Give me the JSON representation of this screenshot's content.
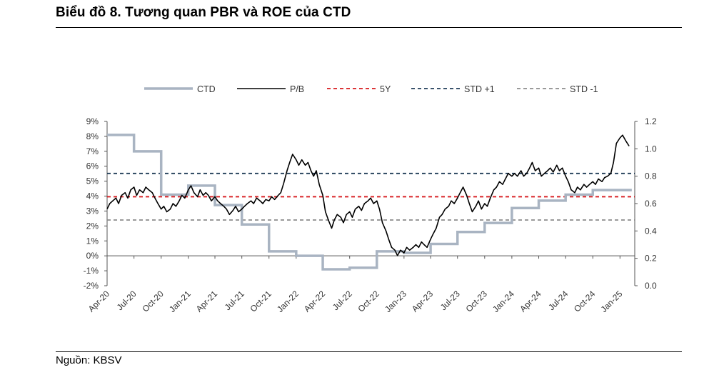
{
  "header": {
    "title": "Biểu đồ 8. Tương quan PBR và ROE của CTD"
  },
  "footer": {
    "source": "Nguồn: KBSV"
  },
  "chart_data": {
    "type": "line",
    "title": "Biểu đồ 8. Tương quan PBR và ROE của CTD",
    "xlabel": "",
    "ylabel_left": "",
    "ylabel_right": "",
    "x_ticks": [
      "Apr-20",
      "Jul-20",
      "Oct-20",
      "Jan-21",
      "Apr-21",
      "Jul-21",
      "Oct-21",
      "Jan-22",
      "Apr-22",
      "Jul-22",
      "Oct-22",
      "Jan-23",
      "Apr-23",
      "Jul-23",
      "Oct-23",
      "Jan-24",
      "Apr-24",
      "Jul-24",
      "Oct-24",
      "Jan-25"
    ],
    "y_left_ticks": [
      "9%",
      "8%",
      "7%",
      "6%",
      "5%",
      "4%",
      "3%",
      "2%",
      "1%",
      "0%",
      "-1%",
      "-2%"
    ],
    "y_left_range": [
      -2,
      9
    ],
    "y_right_ticks": [
      "1.2",
      "1.0",
      "0.8",
      "0.6",
      "0.4",
      "0.2",
      "0.0"
    ],
    "y_right_range": [
      0,
      1.2
    ],
    "legend_position": "top",
    "grid": false,
    "colors": {
      "CTD": "#a9b4c2",
      "P/B": "#000000",
      "5Y": "#d7191c",
      "STD +1": "#1f3b57",
      "STD -1": "#8c8c8c"
    },
    "series": [
      {
        "name": "CTD",
        "axis": "left",
        "style": "step",
        "points": [
          [
            "2020-04-01",
            8.1
          ],
          [
            "2020-07-01",
            7.0
          ],
          [
            "2020-10-01",
            4.1
          ],
          [
            "2021-01-01",
            4.7
          ],
          [
            "2021-04-01",
            3.4
          ],
          [
            "2021-07-01",
            2.1
          ],
          [
            "2021-10-01",
            0.3
          ],
          [
            "2022-01-01",
            0.0
          ],
          [
            "2022-04-01",
            -0.9
          ],
          [
            "2022-07-01",
            -0.8
          ],
          [
            "2022-10-01",
            0.3
          ],
          [
            "2023-01-01",
            0.2
          ],
          [
            "2023-04-01",
            0.8
          ],
          [
            "2023-07-01",
            1.6
          ],
          [
            "2023-10-01",
            2.2
          ],
          [
            "2024-01-01",
            3.2
          ],
          [
            "2024-04-01",
            3.7
          ],
          [
            "2024-07-01",
            4.1
          ],
          [
            "2024-10-01",
            4.4
          ],
          [
            "2025-02-10",
            4.4
          ]
        ]
      },
      {
        "name": "P/B",
        "axis": "right",
        "points": [
          [
            "2020-04-01",
            0.56
          ],
          [
            "2020-04-10",
            0.6
          ],
          [
            "2020-04-20",
            0.62
          ],
          [
            "2020-05-01",
            0.64
          ],
          [
            "2020-05-10",
            0.6
          ],
          [
            "2020-05-20",
            0.66
          ],
          [
            "2020-06-01",
            0.68
          ],
          [
            "2020-06-10",
            0.64
          ],
          [
            "2020-06-20",
            0.7
          ],
          [
            "2020-07-01",
            0.72
          ],
          [
            "2020-07-10",
            0.66
          ],
          [
            "2020-07-20",
            0.7
          ],
          [
            "2020-08-01",
            0.68
          ],
          [
            "2020-08-10",
            0.72
          ],
          [
            "2020-08-20",
            0.7
          ],
          [
            "2020-09-01",
            0.68
          ],
          [
            "2020-09-10",
            0.64
          ],
          [
            "2020-09-20",
            0.6
          ],
          [
            "2020-10-01",
            0.56
          ],
          [
            "2020-10-10",
            0.58
          ],
          [
            "2020-10-20",
            0.54
          ],
          [
            "2020-11-01",
            0.56
          ],
          [
            "2020-11-10",
            0.6
          ],
          [
            "2020-11-20",
            0.58
          ],
          [
            "2020-12-01",
            0.62
          ],
          [
            "2020-12-10",
            0.66
          ],
          [
            "2020-12-20",
            0.64
          ],
          [
            "2021-01-01",
            0.7
          ],
          [
            "2021-01-10",
            0.73
          ],
          [
            "2021-01-20",
            0.68
          ],
          [
            "2021-02-01",
            0.65
          ],
          [
            "2021-02-10",
            0.7
          ],
          [
            "2021-02-20",
            0.66
          ],
          [
            "2021-03-01",
            0.68
          ],
          [
            "2021-03-10",
            0.66
          ],
          [
            "2021-03-20",
            0.62
          ],
          [
            "2021-04-01",
            0.65
          ],
          [
            "2021-04-10",
            0.62
          ],
          [
            "2021-04-20",
            0.6
          ],
          [
            "2021-05-01",
            0.58
          ],
          [
            "2021-05-10",
            0.56
          ],
          [
            "2021-05-20",
            0.52
          ],
          [
            "2021-06-01",
            0.55
          ],
          [
            "2021-06-10",
            0.58
          ],
          [
            "2021-06-20",
            0.54
          ],
          [
            "2021-07-01",
            0.56
          ],
          [
            "2021-07-10",
            0.58
          ],
          [
            "2021-07-20",
            0.6
          ],
          [
            "2021-08-01",
            0.62
          ],
          [
            "2021-08-10",
            0.6
          ],
          [
            "2021-08-20",
            0.64
          ],
          [
            "2021-09-01",
            0.62
          ],
          [
            "2021-09-10",
            0.6
          ],
          [
            "2021-09-20",
            0.63
          ],
          [
            "2021-10-01",
            0.62
          ],
          [
            "2021-10-10",
            0.65
          ],
          [
            "2021-10-20",
            0.63
          ],
          [
            "2021-11-01",
            0.66
          ],
          [
            "2021-11-10",
            0.68
          ],
          [
            "2021-11-20",
            0.75
          ],
          [
            "2021-12-01",
            0.84
          ],
          [
            "2021-12-10",
            0.9
          ],
          [
            "2021-12-20",
            0.96
          ],
          [
            "2022-01-01",
            0.92
          ],
          [
            "2022-01-10",
            0.88
          ],
          [
            "2022-01-20",
            0.92
          ],
          [
            "2022-02-01",
            0.88
          ],
          [
            "2022-02-10",
            0.9
          ],
          [
            "2022-02-20",
            0.84
          ],
          [
            "2022-03-01",
            0.8
          ],
          [
            "2022-03-10",
            0.84
          ],
          [
            "2022-03-20",
            0.74
          ],
          [
            "2022-04-01",
            0.66
          ],
          [
            "2022-04-10",
            0.54
          ],
          [
            "2022-04-20",
            0.48
          ],
          [
            "2022-05-01",
            0.42
          ],
          [
            "2022-05-10",
            0.48
          ],
          [
            "2022-05-20",
            0.52
          ],
          [
            "2022-06-01",
            0.5
          ],
          [
            "2022-06-10",
            0.46
          ],
          [
            "2022-06-20",
            0.52
          ],
          [
            "2022-07-01",
            0.54
          ],
          [
            "2022-07-10",
            0.5
          ],
          [
            "2022-07-20",
            0.56
          ],
          [
            "2022-08-01",
            0.58
          ],
          [
            "2022-08-10",
            0.55
          ],
          [
            "2022-08-20",
            0.6
          ],
          [
            "2022-09-01",
            0.62
          ],
          [
            "2022-09-10",
            0.64
          ],
          [
            "2022-09-20",
            0.6
          ],
          [
            "2022-10-01",
            0.62
          ],
          [
            "2022-10-10",
            0.56
          ],
          [
            "2022-10-20",
            0.46
          ],
          [
            "2022-11-01",
            0.4
          ],
          [
            "2022-11-10",
            0.34
          ],
          [
            "2022-11-20",
            0.28
          ],
          [
            "2022-12-01",
            0.26
          ],
          [
            "2022-12-10",
            0.22
          ],
          [
            "2022-12-20",
            0.26
          ],
          [
            "2023-01-01",
            0.24
          ],
          [
            "2023-01-10",
            0.28
          ],
          [
            "2023-01-20",
            0.26
          ],
          [
            "2023-02-01",
            0.28
          ],
          [
            "2023-02-10",
            0.3
          ],
          [
            "2023-02-20",
            0.28
          ],
          [
            "2023-03-01",
            0.32
          ],
          [
            "2023-03-10",
            0.3
          ],
          [
            "2023-03-20",
            0.28
          ],
          [
            "2023-04-01",
            0.34
          ],
          [
            "2023-04-10",
            0.38
          ],
          [
            "2023-04-20",
            0.42
          ],
          [
            "2023-05-01",
            0.5
          ],
          [
            "2023-05-10",
            0.52
          ],
          [
            "2023-05-20",
            0.56
          ],
          [
            "2023-06-01",
            0.58
          ],
          [
            "2023-06-10",
            0.62
          ],
          [
            "2023-06-20",
            0.6
          ],
          [
            "2023-07-01",
            0.64
          ],
          [
            "2023-07-10",
            0.68
          ],
          [
            "2023-07-20",
            0.72
          ],
          [
            "2023-08-01",
            0.66
          ],
          [
            "2023-08-10",
            0.6
          ],
          [
            "2023-08-20",
            0.54
          ],
          [
            "2023-09-01",
            0.58
          ],
          [
            "2023-09-10",
            0.62
          ],
          [
            "2023-09-20",
            0.56
          ],
          [
            "2023-10-01",
            0.6
          ],
          [
            "2023-10-10",
            0.58
          ],
          [
            "2023-10-20",
            0.64
          ],
          [
            "2023-11-01",
            0.7
          ],
          [
            "2023-11-10",
            0.72
          ],
          [
            "2023-11-20",
            0.76
          ],
          [
            "2023-12-01",
            0.74
          ],
          [
            "2023-12-10",
            0.78
          ],
          [
            "2023-12-20",
            0.82
          ],
          [
            "2024-01-01",
            0.8
          ],
          [
            "2024-01-10",
            0.82
          ],
          [
            "2024-01-20",
            0.8
          ],
          [
            "2024-02-01",
            0.84
          ],
          [
            "2024-02-10",
            0.8
          ],
          [
            "2024-02-20",
            0.82
          ],
          [
            "2024-03-01",
            0.86
          ],
          [
            "2024-03-10",
            0.9
          ],
          [
            "2024-03-20",
            0.84
          ],
          [
            "2024-04-01",
            0.86
          ],
          [
            "2024-04-10",
            0.8
          ],
          [
            "2024-04-20",
            0.82
          ],
          [
            "2024-05-01",
            0.84
          ],
          [
            "2024-05-10",
            0.86
          ],
          [
            "2024-05-20",
            0.83
          ],
          [
            "2024-06-01",
            0.88
          ],
          [
            "2024-06-10",
            0.84
          ],
          [
            "2024-06-20",
            0.86
          ],
          [
            "2024-07-01",
            0.8
          ],
          [
            "2024-07-10",
            0.76
          ],
          [
            "2024-07-20",
            0.7
          ],
          [
            "2024-08-01",
            0.68
          ],
          [
            "2024-08-10",
            0.72
          ],
          [
            "2024-08-20",
            0.7
          ],
          [
            "2024-09-01",
            0.74
          ],
          [
            "2024-09-10",
            0.72
          ],
          [
            "2024-09-20",
            0.74
          ],
          [
            "2024-10-01",
            0.76
          ],
          [
            "2024-10-10",
            0.74
          ],
          [
            "2024-10-20",
            0.78
          ],
          [
            "2024-11-01",
            0.76
          ],
          [
            "2024-11-10",
            0.79
          ],
          [
            "2024-11-20",
            0.8
          ],
          [
            "2024-12-01",
            0.82
          ],
          [
            "2024-12-10",
            0.9
          ],
          [
            "2024-12-20",
            1.04
          ],
          [
            "2025-01-01",
            1.08
          ],
          [
            "2025-01-10",
            1.1
          ],
          [
            "2025-01-20",
            1.06
          ],
          [
            "2025-02-01",
            1.02
          ]
        ]
      },
      {
        "name": "5Y",
        "axis": "right",
        "value": 0.65
      },
      {
        "name": "STD +1",
        "axis": "right",
        "value": 0.82
      },
      {
        "name": "STD -1",
        "axis": "right",
        "value": 0.48
      }
    ]
  }
}
